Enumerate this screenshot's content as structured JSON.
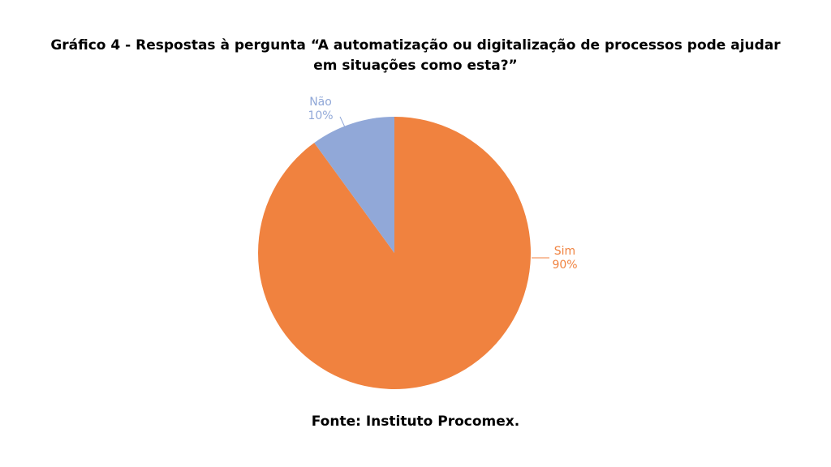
{
  "chart_data": {
    "type": "pie",
    "title_line1": "Gráfico 4 - Respostas à pergunta “A automatização ou digitalização de processos pode ajudar",
    "title_line2": "em situações como esta?”",
    "slices": [
      {
        "label": "Sim",
        "value": 90,
        "value_label": "90%",
        "color": "#F0823F"
      },
      {
        "label": "Não",
        "value": 10,
        "value_label": "10%",
        "color": "#91A8D8"
      }
    ]
  },
  "source": "Fonte: Instituto Procomex."
}
